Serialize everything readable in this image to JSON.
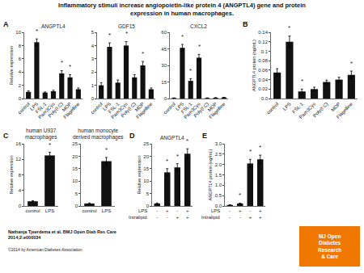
{
  "title": "Inflammatory stimuli increase angiopoietin-like protein 4 (ANGPTL4) gene and protein\nexpression in human macrophages.",
  "annotations": [
    {
      "text": "Nathanja Tjeerdema et al. BMJ Open Diab Res Care\n2014;2:e000034"
    },
    {
      "text": "©2014 by American Diabetes Association"
    },
    {
      "text": "MJ Open\nDiabetes\nResearch\n& Care",
      "color": "#F07800"
    }
  ],
  "chart_data": [
    {
      "type": "bar",
      "title": "ANGPTL4",
      "categories": [
        "control",
        "LPS",
        "FSL-1",
        "Pam3Cys",
        "Poly(I:C)",
        "MDP",
        "Flagelline"
      ],
      "values": [
        1.0,
        8.5,
        0.9,
        1.1,
        3.8,
        3.2,
        1.4
      ],
      "errors": [
        0.15,
        0.5,
        0.1,
        0.15,
        0.4,
        0.4,
        0.2
      ],
      "color": "#111111",
      "ylim": [
        0,
        10
      ],
      "yticks": [
        0,
        2,
        4,
        6,
        8,
        10
      ],
      "ylabel": "Relative expression",
      "grid": false,
      "annotations": [
        {
          "text": "A"
        },
        {
          "text": "*",
          "x": 1
        },
        {
          "text": "*",
          "x": 4
        },
        {
          "text": "*",
          "x": 5
        }
      ]
    },
    {
      "type": "bar",
      "title": "GDF15",
      "categories": [
        "control",
        "LPS",
        "FSL-1",
        "Pam3Cys",
        "Poly(I:C)",
        "MDP",
        "Flagelline"
      ],
      "values": [
        1.0,
        3.9,
        1.2,
        4.0,
        1.6,
        2.5,
        0.7
      ],
      "errors": [
        0.2,
        0.3,
        0.2,
        0.3,
        0.2,
        0.3,
        0.1
      ],
      "color": "#111111",
      "ylim": [
        0,
        5
      ],
      "yticks": [
        0,
        1,
        2,
        3,
        4,
        5
      ],
      "grid": false,
      "annotations": [
        {
          "text": "*",
          "x": 1
        },
        {
          "text": "*",
          "x": 3
        },
        {
          "text": "*",
          "x": 5
        }
      ]
    },
    {
      "type": "bar",
      "title": "CXCL2",
      "categories": [
        "control",
        "LPS",
        "FSL-1",
        "Pam3Cys",
        "Poly(I:C)",
        "MDP",
        "Flagelline"
      ],
      "values": [
        0.5,
        46.0,
        16.0,
        37.0,
        0.5,
        0.7,
        1.0
      ],
      "errors": [
        0.1,
        3.0,
        2.0,
        3.0,
        0.1,
        0.1,
        0.15
      ],
      "color": "#111111",
      "ylim": [
        0,
        60
      ],
      "yticks": [
        0,
        15,
        30,
        45,
        60
      ],
      "grid": false,
      "annotations": [
        {
          "text": "*",
          "x": 1
        },
        {
          "text": "*",
          "x": 2
        },
        {
          "text": "*",
          "x": 3
        }
      ]
    },
    {
      "type": "bar",
      "categories": [
        "control",
        "LPS",
        "FSL-1",
        "Pam3Cys",
        "Poly(I:C)",
        "MDP",
        "Flagelline"
      ],
      "values": [
        0.055,
        0.12,
        0.015,
        0.02,
        0.035,
        0.04,
        0.05
      ],
      "errors": [
        0.008,
        0.012,
        0.005,
        0.004,
        0.004,
        0.005,
        0.008
      ],
      "color": "#111111",
      "ylim": [
        0,
        0.14
      ],
      "yticks": [
        {
          "value": 0,
          "label": "0.0"
        },
        0.02,
        0.04,
        0.06,
        0.08,
        {
          "value": 0.1,
          "label": "0.1"
        },
        0.12,
        0.14
      ],
      "ylabel": "ANGPTL4 protein (ng/mL)",
      "grid": false,
      "annotations": [
        {
          "text": "B"
        },
        {
          "text": "*",
          "x": 1
        },
        {
          "text": "*",
          "x": 2
        },
        {
          "text": "*",
          "x": 6
        }
      ]
    },
    {
      "type": "bar",
      "title": "human U937\nmacrophages",
      "categories": [
        "control",
        "LPS"
      ],
      "values": [
        1.2,
        13.0
      ],
      "errors": [
        0.15,
        0.8
      ],
      "color": "#111111",
      "ylim": [
        0,
        16
      ],
      "yticks": [
        0,
        4,
        8,
        12,
        16
      ],
      "ylabel": "Relative expression",
      "grid": false,
      "annotations": [
        {
          "text": "C"
        },
        {
          "text": "*",
          "x": 1
        }
      ]
    },
    {
      "type": "bar",
      "title": "human monocyte\nderived macrophages",
      "categories": [
        "control",
        "LPS"
      ],
      "values": [
        1.0,
        18.0
      ],
      "errors": [
        0.2,
        1.5
      ],
      "color": "#111111",
      "ylim": [
        0,
        25
      ],
      "yticks": [
        0,
        5,
        10,
        15,
        20,
        25
      ],
      "grid": false,
      "annotations": [
        {
          "text": "*",
          "x": 1
        }
      ]
    },
    {
      "type": "bar",
      "title": "ANGPTL4",
      "categories": [
        [
          "-",
          "-"
        ],
        [
          "+",
          "-"
        ],
        [
          "-",
          "+"
        ],
        [
          "+",
          "+"
        ]
      ],
      "category_rows": [
        "LPS",
        "Intralipid"
      ],
      "values": [
        1.0,
        13.5,
        15.5,
        21.0
      ],
      "errors": [
        0.2,
        1.5,
        1.5,
        2.0
      ],
      "color": "#111111",
      "ylim": [
        0,
        25
      ],
      "yticks": [
        0,
        5,
        10,
        15,
        20,
        25
      ],
      "ylabel": "Relative expression",
      "grid": false,
      "annotations": [
        {
          "text": "D"
        },
        {
          "text": "*",
          "x": 1
        },
        {
          "text": "*",
          "x": 2
        },
        {
          "text": "*",
          "x": 3
        }
      ]
    },
    {
      "type": "bar",
      "categories": [
        [
          "-",
          "-"
        ],
        [
          "+",
          "-"
        ],
        [
          "-",
          "+"
        ],
        [
          "+",
          "+"
        ]
      ],
      "category_rows": [
        "LPS",
        "Intralipid"
      ],
      "values": [
        0.05,
        0.12,
        2.05,
        2.25
      ],
      "errors": [
        0.01,
        0.02,
        0.2,
        0.2
      ],
      "color": "#111111",
      "ylim": [
        0,
        3
      ],
      "yticks": [
        {
          "value": 0,
          "label": "0.0"
        },
        0.5,
        {
          "value": 1,
          "label": "1.0"
        },
        1.5,
        {
          "value": 2,
          "label": "2.0"
        },
        2.5,
        {
          "value": 3,
          "label": "3.0"
        }
      ],
      "ylabel": "ANGPTL4 protein (ng/mL)",
      "grid": false,
      "annotations": [
        {
          "text": "E"
        },
        {
          "text": "*",
          "x": 1
        },
        {
          "text": "*",
          "x": 2
        },
        {
          "text": "*",
          "x": 3
        }
      ]
    }
  ]
}
